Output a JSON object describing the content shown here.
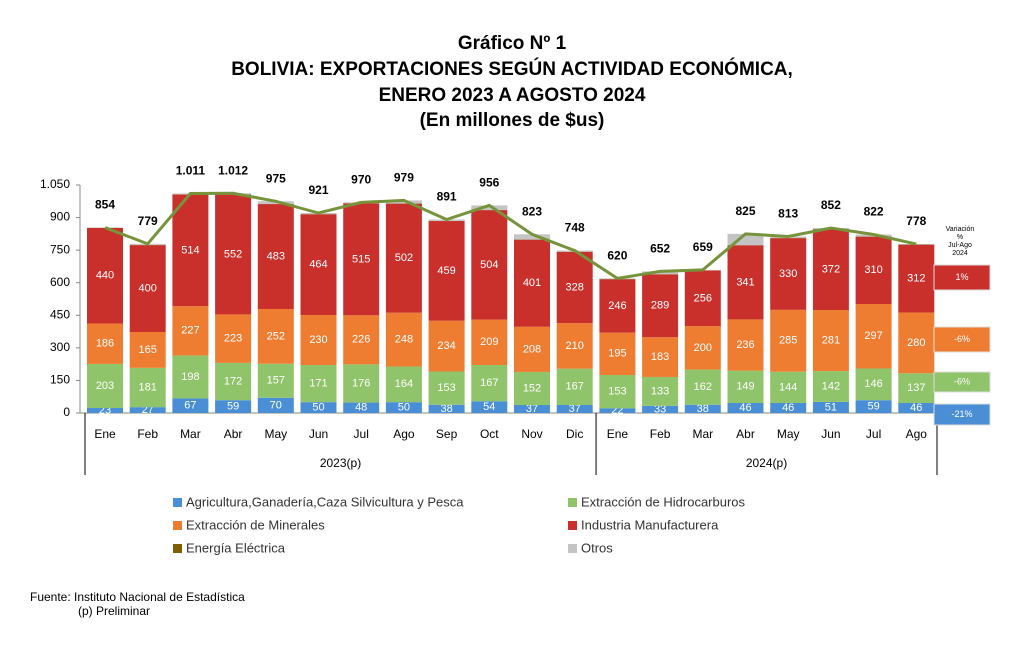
{
  "chart_data": {
    "type": "stacked_bar_line",
    "title": "Gráfico Nº 1",
    "subtitle": [
      "BOLIVIA: EXPORTACIONES SEGÚN ACTIVIDAD ECONÓMICA,",
      "ENERO 2023 A AGOSTO 2024",
      "(En millones de $us)"
    ],
    "categories": [
      "Ene",
      "Feb",
      "Mar",
      "Abr",
      "May",
      "Jun",
      "Jul",
      "Ago",
      "Sep",
      "Oct",
      "Nov",
      "Dic",
      "Ene",
      "Feb",
      "Mar",
      "Abr",
      "May",
      "Jun",
      "Jul",
      "Ago"
    ],
    "groups": [
      {
        "label": "2023(p)",
        "count": 12
      },
      {
        "label": "2024(p)",
        "count": 8
      }
    ],
    "ylim": [
      0,
      1050
    ],
    "yticks": [
      0,
      150,
      300,
      450,
      600,
      750,
      900,
      {
        "value": 1050,
        "label": "1.050"
      }
    ],
    "series": [
      {
        "name": "Agricultura,Ganadería,Caza Silvicultura y Pesca",
        "color": "#4a8fd6",
        "values": [
          23,
          27,
          67,
          59,
          70,
          50,
          48,
          50,
          38,
          54,
          37,
          37,
          22,
          33,
          38,
          46,
          46,
          51,
          59,
          46
        ]
      },
      {
        "name": "Extracción de Hidrocarburos",
        "color": "#8fc46a",
        "values": [
          203,
          181,
          198,
          172,
          157,
          171,
          176,
          164,
          153,
          167,
          152,
          167,
          153,
          133,
          162,
          149,
          144,
          142,
          146,
          137
        ]
      },
      {
        "name": "Extracción de Minerales",
        "color": "#ee7d31",
        "values": [
          186,
          165,
          227,
          223,
          252,
          230,
          226,
          248,
          234,
          209,
          208,
          210,
          195,
          183,
          200,
          236,
          285,
          281,
          297,
          280
        ]
      },
      {
        "name": "Industria Manufacturera",
        "color": "#c9302c",
        "values": [
          440,
          400,
          514,
          552,
          483,
          464,
          515,
          502,
          459,
          504,
          401,
          328,
          246,
          289,
          256,
          341,
          330,
          372,
          310,
          312
        ]
      },
      {
        "name": "Energía Eléctrica",
        "color": "#7f6000",
        "values": [
          1,
          1,
          1,
          1,
          1,
          1,
          1,
          1,
          1,
          1,
          1,
          1,
          1,
          1,
          1,
          1,
          1,
          1,
          1,
          1
        ]
      },
      {
        "name": "Otros",
        "color": "#c4c4c4",
        "values": [
          1,
          5,
          4,
          5,
          12,
          5,
          4,
          14,
          6,
          21,
          24,
          5,
          3,
          13,
          2,
          52,
          7,
          5,
          9,
          2
        ]
      }
    ],
    "totals": {
      "color": "#77933c",
      "values": [
        854,
        779,
        1011,
        1012,
        975,
        921,
        970,
        979,
        891,
        956,
        823,
        748,
        620,
        652,
        659,
        825,
        813,
        852,
        822,
        778
      ],
      "value_labels": [
        "854",
        "779",
        "1.011",
        "1.012",
        "975",
        "921",
        "970",
        "979",
        "891",
        "956",
        "823",
        "748",
        "620",
        "652",
        "659",
        "825",
        "813",
        "852",
        "822",
        "778"
      ]
    },
    "variation": {
      "title": [
        "Variación",
        "%",
        "Jul-Ago",
        "2024"
      ],
      "values": [
        1,
        -6,
        -6,
        -21
      ],
      "value_labels": [
        "1%",
        "-6%",
        "-6%",
        "-21%"
      ],
      "colors": [
        "#c9302c",
        "#ee7d31",
        "#8fc46a",
        "#4a8fd6"
      ]
    },
    "source": [
      "Fuente: Instituto Nacional de Estadística",
      "(p) Preliminar"
    ]
  }
}
